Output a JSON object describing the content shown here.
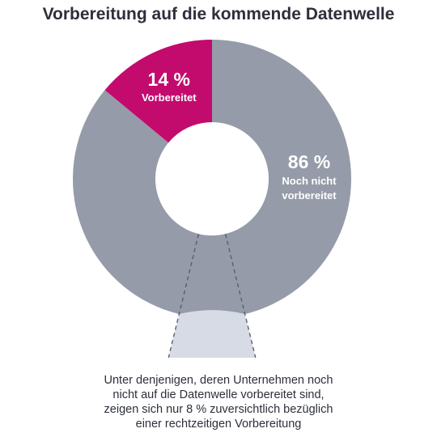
{
  "chart_data": {
    "type": "pie",
    "variant": "donut",
    "title": "Vorbereitung auf die kommende Datenwelle",
    "slices": [
      {
        "label": "Vorbereitet",
        "value": 14,
        "value_label": "14 %",
        "color": "#c30b6e"
      },
      {
        "label": "Noch nicht vorbereitet",
        "label_lines": [
          "Noch nicht",
          "vorbereitet"
        ],
        "value": 86,
        "value_label": "86 %",
        "color": "#959ba8"
      }
    ],
    "sub_breakdown": {
      "parent": "Noch nicht vorbereitet",
      "value": 8,
      "color": "#d6dbe5"
    },
    "caption_lines": [
      "Unter denjenigen, deren Unternehmen noch",
      "nicht auf die Datenwelle vorbereitet sind,",
      "zeigen sich nur 8 % zuversichtlich bezüglich",
      "einer rechtzeitigen Vorbereitung"
    ]
  }
}
